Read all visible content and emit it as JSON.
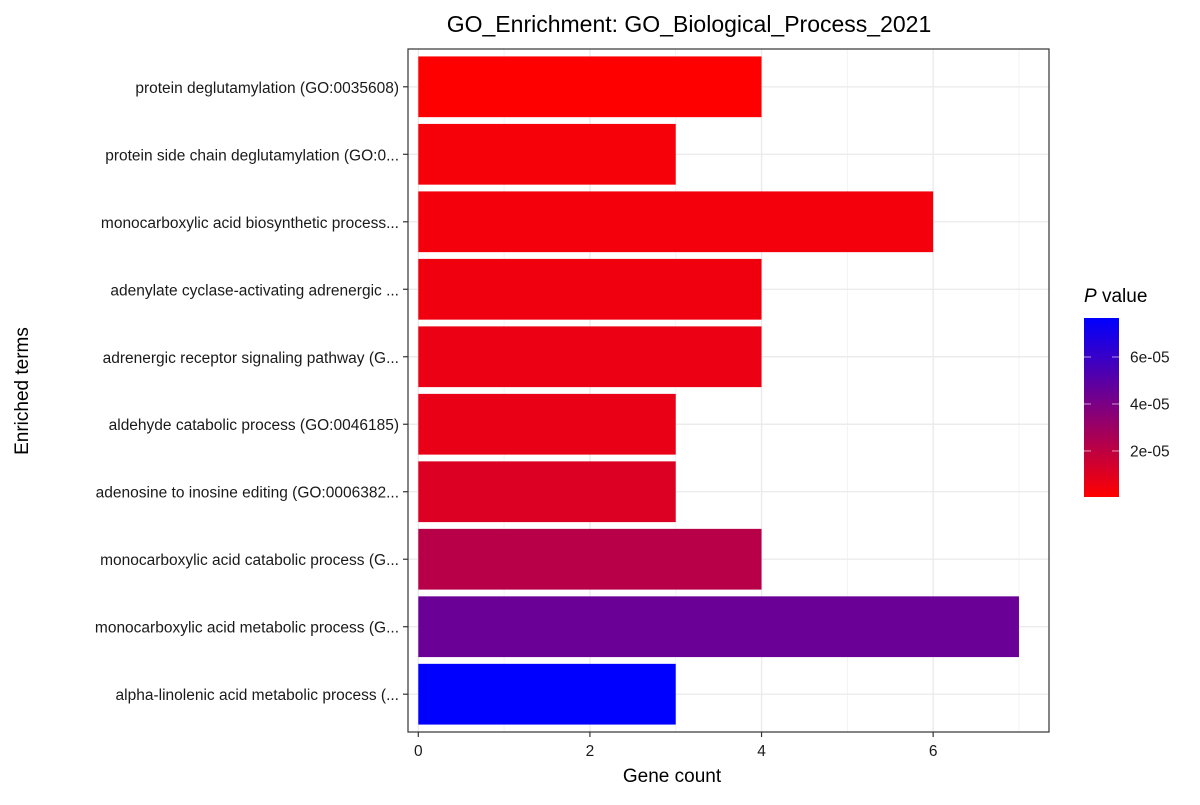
{
  "chart_data": {
    "type": "bar",
    "orientation": "horizontal",
    "title": "GO_Enrichment: GO_Biological_Process_2021",
    "xlabel": "Gene count",
    "ylabel": "Enriched terms",
    "xlim": [
      -0.12,
      7.35
    ],
    "xticks": [
      0,
      2,
      4,
      6
    ],
    "grid": true,
    "categories": [
      "protein deglutamylation (GO:0035608)",
      "protein side chain deglutamylation (GO:0...",
      "monocarboxylic acid biosynthetic process...",
      "adenylate cyclase-activating adrenergic ...",
      "adrenergic receptor signaling pathway (G...",
      "aldehyde catabolic process (GO:0046185)",
      "adenosine to inosine editing (GO:0006382...",
      "monocarboxylic acid catabolic process (G...",
      "monocarboxylic acid metabolic process (G...",
      "alpha-linolenic acid metabolic process (..."
    ],
    "values": [
      4,
      3,
      6,
      4,
      4,
      3,
      3,
      4,
      7,
      3
    ],
    "p_values": [
      4e-07,
      3e-06,
      4e-06,
      5e-06,
      6e-06,
      7e-06,
      1.1e-05,
      2.2e-05,
      4.5e-05,
      7.66e-05
    ],
    "colorscale": {
      "title_italic": "P",
      "title_rest": " value",
      "low_color": "#FF0000",
      "high_color": "#0000FF",
      "range": [
        4e-07,
        7.66e-05
      ],
      "ticks": [
        2e-05,
        4e-05,
        6e-05
      ],
      "tick_labels": [
        "2e-05",
        "4e-05",
        "6e-05"
      ],
      "placement": "right"
    }
  }
}
